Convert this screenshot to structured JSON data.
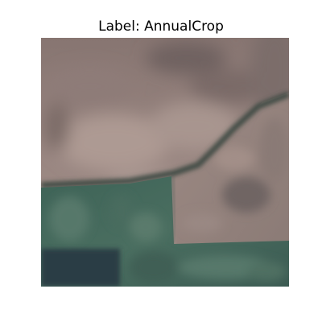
{
  "figure": {
    "title": "Label: AnnualCrop"
  },
  "image": {
    "classification": "AnnualCrop",
    "colors": {
      "bare_field": "#8f7f78",
      "bare_field_light": "#a89590",
      "bare_field_dark": "#6e6260",
      "vegetation": "#3d5e54",
      "vegetation_light": "#56786a",
      "vegetation_dark": "#2e4a48",
      "water_dark": "#2a3a42",
      "road_dark": "#3a4a45"
    }
  }
}
